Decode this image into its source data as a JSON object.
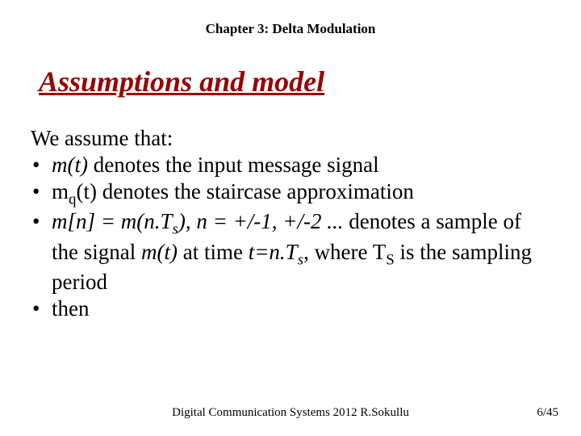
{
  "chapter": "Chapter 3: Delta Modulation",
  "title": "Assumptions and model",
  "intro": "We assume that:",
  "bullets": {
    "b1": {
      "pre": "m(t)",
      "post": " denotes  the input message signal"
    },
    "b2": {
      "pre": "m",
      "sub": "q",
      "post": "(t) denotes the staircase approximation"
    },
    "b3": {
      "p1": "m[n] = m(n.T",
      "sub1": "s",
      "p2": "), n = +/-1, +/-2 ...",
      "p3": " denotes a sample of the signal ",
      "p4": "m(t)",
      "p5": " at time ",
      "p6": "t=n.T",
      "sub2": "s",
      "p7": ", where T",
      "subS": "S",
      "p8": " is the sampling period"
    },
    "b4": "then"
  },
  "footer": {
    "center": "Digital Communication Systems 2012 R.Sokullu",
    "right": "6/45"
  },
  "colors": {
    "title": "#990000",
    "text": "#000000",
    "background": "#ffffff"
  },
  "fonts": {
    "family": "Times New Roman",
    "title_size_pt": 36,
    "body_size_pt": 27,
    "chapter_size_pt": 17,
    "footer_size_pt": 15
  }
}
